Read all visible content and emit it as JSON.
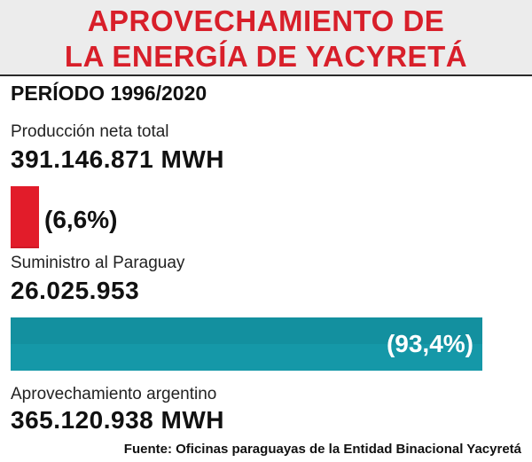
{
  "header": {
    "title_line1": "APROVECHAMIENTO DE",
    "title_line2": "LA ENERGÍA DE YACYRETÁ"
  },
  "period": "PERÍODO 1996/2020",
  "total": {
    "label": "Producción neta total",
    "value_text": "391.146.871 MWH"
  },
  "colors": {
    "title_red": "#d81f2a",
    "paraguay_red": "#e21c2a",
    "argentina_teal": "#1598a8"
  },
  "chart_data": {
    "type": "bar",
    "orientation": "horizontal",
    "unit": "MWH",
    "total": 391146871,
    "categories": [
      "Suministro al Paraguay",
      "Aprovechamiento argentino"
    ],
    "values": [
      26025953,
      365120938
    ],
    "percent": [
      6.6,
      93.4
    ],
    "percent_labels": [
      "(6,6%)",
      "(93,4%)"
    ],
    "value_labels": [
      "26.025.953",
      "365.120.938 MWH"
    ],
    "colors": [
      "#e21c2a",
      "#1598a8"
    ]
  },
  "source": "Fuente: Oficinas paraguayas de la Entidad Binacional Yacyretá"
}
